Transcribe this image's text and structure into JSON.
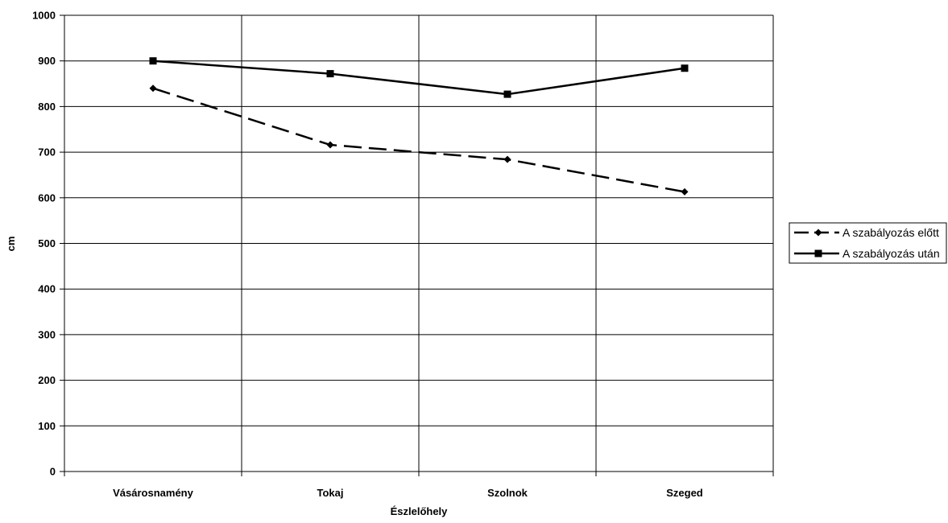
{
  "chart_data": {
    "type": "line",
    "categories": [
      "Vásárosnamény",
      "Tokaj",
      "Szolnok",
      "Szeged"
    ],
    "series": [
      {
        "name": "A szabályozás előtt",
        "values": [
          840,
          716,
          684,
          613
        ],
        "line_style": "dashed",
        "marker": "diamond",
        "color": "#000000"
      },
      {
        "name": "A szabályozás után",
        "values": [
          900,
          872,
          827,
          884
        ],
        "line_style": "solid",
        "marker": "square",
        "color": "#000000"
      }
    ],
    "xlabel": "Észlelőhely",
    "ylabel": "cm",
    "ylim": [
      0,
      1000
    ],
    "yticks": [
      0,
      100,
      200,
      300,
      400,
      500,
      600,
      700,
      800,
      900,
      1000
    ],
    "grid": true,
    "legend": "right"
  }
}
